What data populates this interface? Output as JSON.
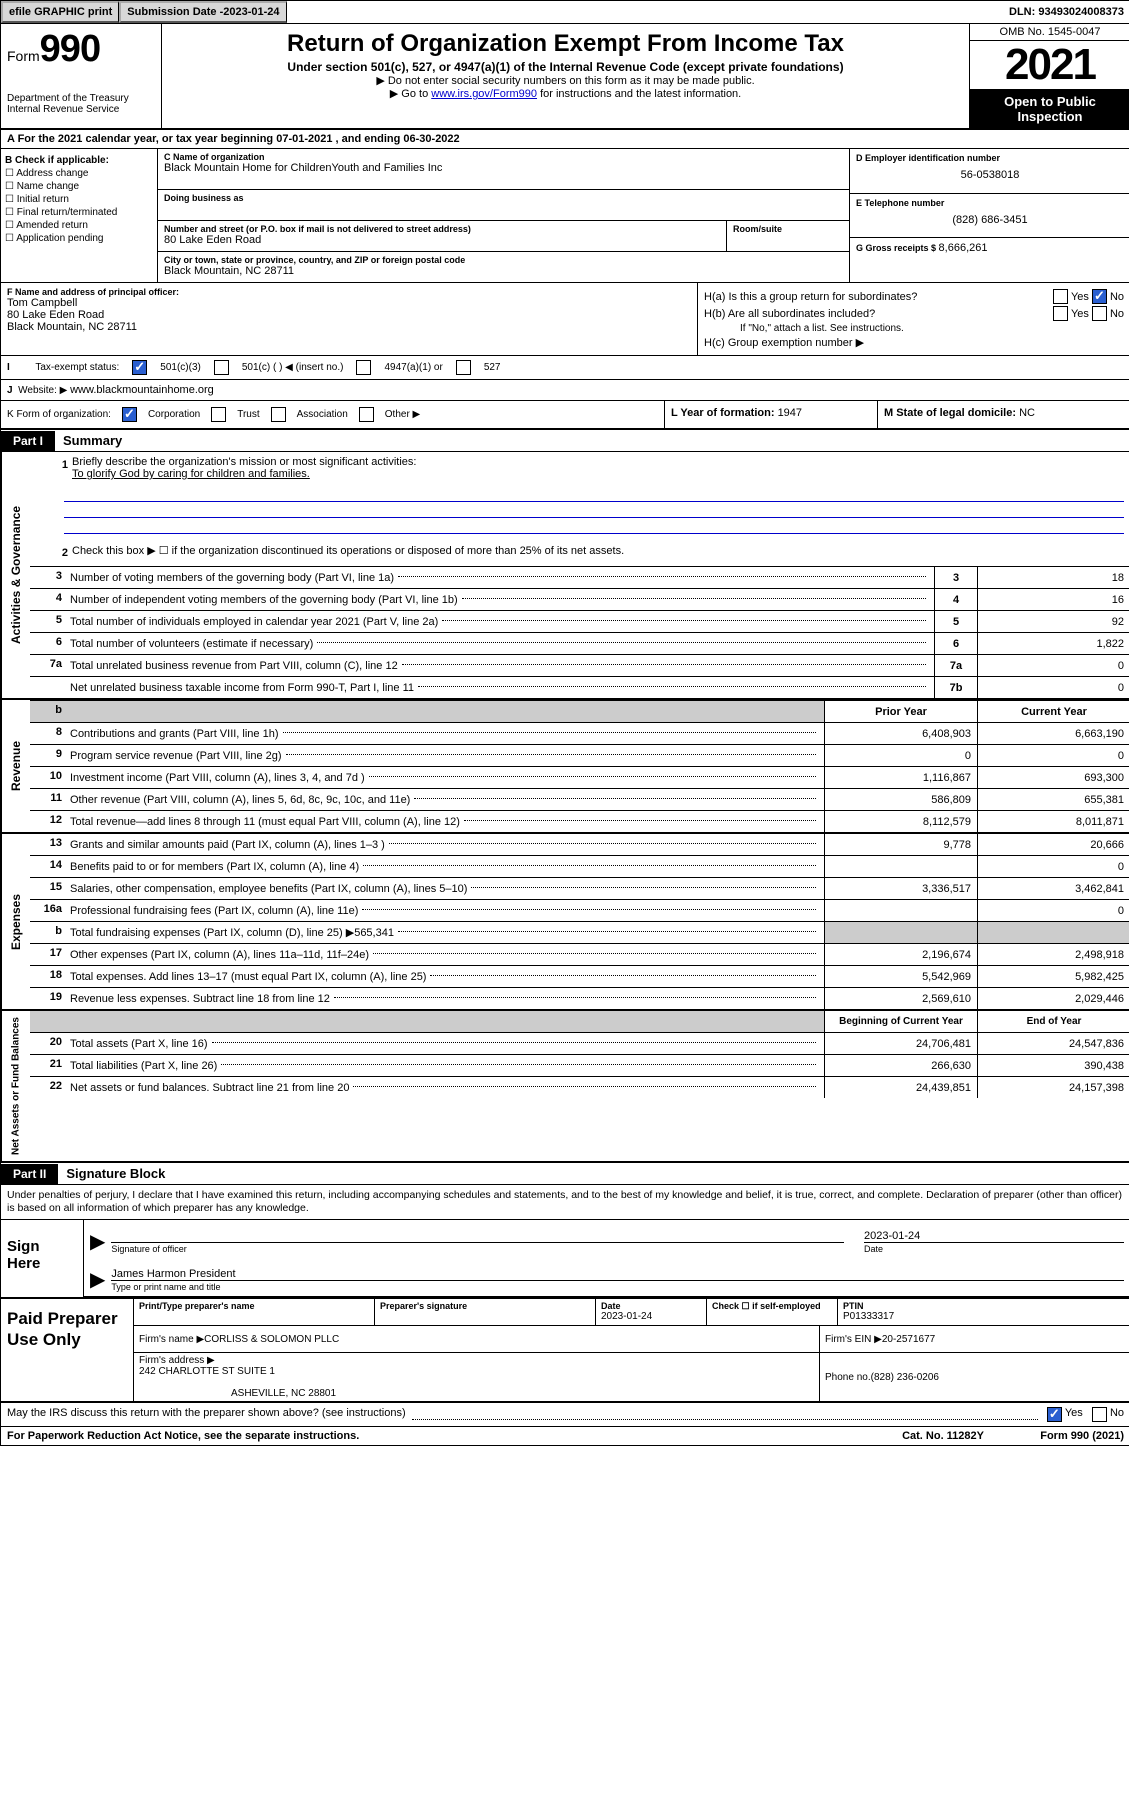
{
  "topbar": {
    "efile": "efile GRAPHIC print",
    "subdate_label": "Submission Date - ",
    "subdate": "2023-01-24",
    "dln": "DLN: 93493024008373"
  },
  "header": {
    "form_label": "Form",
    "form_number": "990",
    "title": "Return of Organization Exempt From Income Tax",
    "sub": "Under section 501(c), 527, or 4947(a)(1) of the Internal Revenue Code (except private foundations)",
    "note1": "▶ Do not enter social security numbers on this form as it may be made public.",
    "note2_pre": "▶ Go to ",
    "note2_link": "www.irs.gov/Form990",
    "note2_post": " for instructions and the latest information.",
    "dept": "Department of the Treasury\nInternal Revenue Service",
    "omb": "OMB No. 1545-0047",
    "year": "2021",
    "open": "Open to Public Inspection"
  },
  "row_a": {
    "text_pre": "A For the 2021 calendar year, or tax year beginning ",
    "begin": "07-01-2021",
    "mid": " , and ending ",
    "end": "06-30-2022"
  },
  "col_b": {
    "title": "B Check if applicable:",
    "items": [
      "Address change",
      "Name change",
      "Initial return",
      "Final return/terminated",
      "Amended return",
      "Application pending"
    ]
  },
  "name_block": {
    "c_label": "C Name of organization",
    "org": "Black Mountain Home for ChildrenYouth and Families Inc",
    "dba_label": "Doing business as",
    "addr_label": "Number and street (or P.O. box if mail is not delivered to street address)",
    "room_label": "Room/suite",
    "addr": "80 Lake Eden Road",
    "city_label": "City or town, state or province, country, and ZIP or foreign postal code",
    "city": "Black Mountain, NC  28711",
    "d_label": "D Employer identification number",
    "ein": "56-0538018",
    "e_label": "E Telephone number",
    "phone": "(828) 686-3451",
    "g_label": "G Gross receipts $ ",
    "gross": "8,666,261"
  },
  "row_f": {
    "f_label": "F Name and address of principal officer:",
    "officer": "Tom Campbell",
    "addr1": "80 Lake Eden Road",
    "addr2": "Black Mountain, NC  28711"
  },
  "row_h": {
    "ha": "H(a)  Is this a group return for subordinates?",
    "hb": "H(b)  Are all subordinates included?",
    "hb_note": "If \"No,\" attach a list. See instructions.",
    "hc": "H(c)  Group exemption number ▶",
    "yes": "Yes",
    "no": "No"
  },
  "row_i": {
    "label": "Tax-exempt status:",
    "o1": "501(c)(3)",
    "o2": "501(c) (  ) ◀ (insert no.)",
    "o3": "4947(a)(1) or",
    "o4": "527"
  },
  "row_j": {
    "label": "Website: ▶",
    "site": "www.blackmountainhome.org"
  },
  "row_k": {
    "label": "K Form of organization:",
    "o1": "Corporation",
    "o2": "Trust",
    "o3": "Association",
    "o4": "Other ▶",
    "l_label": "L Year of formation: ",
    "l_val": "1947",
    "m_label": "M State of legal domicile: ",
    "m_val": "NC"
  },
  "part1": {
    "header": "Part I",
    "title": "Summary",
    "l1": "Briefly describe the organization's mission or most significant activities:",
    "mission": "To glorify God by caring for children and families.",
    "l2": "Check this box ▶ ☐  if the organization discontinued its operations or disposed of more than 25% of its net assets."
  },
  "summary": {
    "side1": "Activities & Governance",
    "side2": "Revenue",
    "side3": "Expenses",
    "side4": "Net Assets or Fund Balances",
    "rows_top": [
      {
        "n": "3",
        "d": "Number of voting members of the governing body (Part VI, line 1a)",
        "box": "3",
        "v": "18"
      },
      {
        "n": "4",
        "d": "Number of independent voting members of the governing body (Part VI, line 1b)",
        "box": "4",
        "v": "16"
      },
      {
        "n": "5",
        "d": "Total number of individuals employed in calendar year 2021 (Part V, line 2a)",
        "box": "5",
        "v": "92"
      },
      {
        "n": "6",
        "d": "Total number of volunteers (estimate if necessary)",
        "box": "6",
        "v": "1,822"
      },
      {
        "n": "7a",
        "d": "Total unrelated business revenue from Part VIII, column (C), line 12",
        "box": "7a",
        "v": "0"
      },
      {
        "n": "",
        "d": "Net unrelated business taxable income from Form 990-T, Part I, line 11",
        "box": "7b",
        "v": "0"
      }
    ],
    "col_prior": "Prior Year",
    "col_current": "Current Year",
    "rows_rev": [
      {
        "n": "8",
        "d": "Contributions and grants (Part VIII, line 1h)",
        "p": "6,408,903",
        "c": "6,663,190"
      },
      {
        "n": "9",
        "d": "Program service revenue (Part VIII, line 2g)",
        "p": "0",
        "c": "0"
      },
      {
        "n": "10",
        "d": "Investment income (Part VIII, column (A), lines 3, 4, and 7d )",
        "p": "1,116,867",
        "c": "693,300"
      },
      {
        "n": "11",
        "d": "Other revenue (Part VIII, column (A), lines 5, 6d, 8c, 9c, 10c, and 11e)",
        "p": "586,809",
        "c": "655,381"
      },
      {
        "n": "12",
        "d": "Total revenue—add lines 8 through 11 (must equal Part VIII, column (A), line 12)",
        "p": "8,112,579",
        "c": "8,011,871"
      }
    ],
    "rows_exp": [
      {
        "n": "13",
        "d": "Grants and similar amounts paid (Part IX, column (A), lines 1–3 )",
        "p": "9,778",
        "c": "20,666"
      },
      {
        "n": "14",
        "d": "Benefits paid to or for members (Part IX, column (A), line 4)",
        "p": "",
        "c": "0"
      },
      {
        "n": "15",
        "d": "Salaries, other compensation, employee benefits (Part IX, column (A), lines 5–10)",
        "p": "3,336,517",
        "c": "3,462,841"
      },
      {
        "n": "16a",
        "d": "Professional fundraising fees (Part IX, column (A), line 11e)",
        "p": "",
        "c": "0"
      },
      {
        "n": "b",
        "d": "Total fundraising expenses (Part IX, column (D), line 25) ▶565,341",
        "p": "SHADE",
        "c": "SHADE"
      },
      {
        "n": "17",
        "d": "Other expenses (Part IX, column (A), lines 11a–11d, 11f–24e)",
        "p": "2,196,674",
        "c": "2,498,918"
      },
      {
        "n": "18",
        "d": "Total expenses. Add lines 13–17 (must equal Part IX, column (A), line 25)",
        "p": "5,542,969",
        "c": "5,982,425"
      },
      {
        "n": "19",
        "d": "Revenue less expenses. Subtract line 18 from line 12",
        "p": "2,569,610",
        "c": "2,029,446"
      }
    ],
    "col_begin": "Beginning of Current Year",
    "col_end": "End of Year",
    "rows_net": [
      {
        "n": "20",
        "d": "Total assets (Part X, line 16)",
        "p": "24,706,481",
        "c": "24,547,836"
      },
      {
        "n": "21",
        "d": "Total liabilities (Part X, line 26)",
        "p": "266,630",
        "c": "390,438"
      },
      {
        "n": "22",
        "d": "Net assets or fund balances. Subtract line 21 from line 20",
        "p": "24,439,851",
        "c": "24,157,398"
      }
    ]
  },
  "part2": {
    "header": "Part II",
    "title": "Signature Block",
    "penalty": "Under penalties of perjury, I declare that I have examined this return, including accompanying schedules and statements, and to the best of my knowledge and belief, it is true, correct, and complete. Declaration of preparer (other than officer) is based on all information of which preparer has any knowledge.",
    "sign_here": "Sign Here",
    "sig_of_officer": "Signature of officer",
    "date_label": "Date",
    "sig_date": "2023-01-24",
    "officer_name": "James Harmon  President",
    "type_label": "Type or print name and title"
  },
  "prep": {
    "title": "Paid Preparer Use Only",
    "h1": "Print/Type preparer's name",
    "h2": "Preparer's signature",
    "h3_label": "Date",
    "h3_val": "2023-01-24",
    "h4_label": "Check ☐ if self-employed",
    "h5_label": "PTIN",
    "h5_val": "P01333317",
    "firm_name_label": "Firm's name    ▶ ",
    "firm_name": "CORLISS & SOLOMON PLLC",
    "firm_ein_label": "Firm's EIN ▶ ",
    "firm_ein": "20-2571677",
    "firm_addr_label": "Firm's address ▶ ",
    "firm_addr": "242 CHARLOTTE ST SUITE 1",
    "firm_city": "ASHEVILLE, NC  28801",
    "phone_label": "Phone no. ",
    "phone": "(828) 236-0206"
  },
  "footer": {
    "discuss": "May the IRS discuss this return with the preparer shown above? (see instructions)",
    "yes": "Yes",
    "no": "No",
    "paperwork": "For Paperwork Reduction Act Notice, see the separate instructions.",
    "cat": "Cat. No. 11282Y",
    "form": "Form 990 (2021)"
  }
}
